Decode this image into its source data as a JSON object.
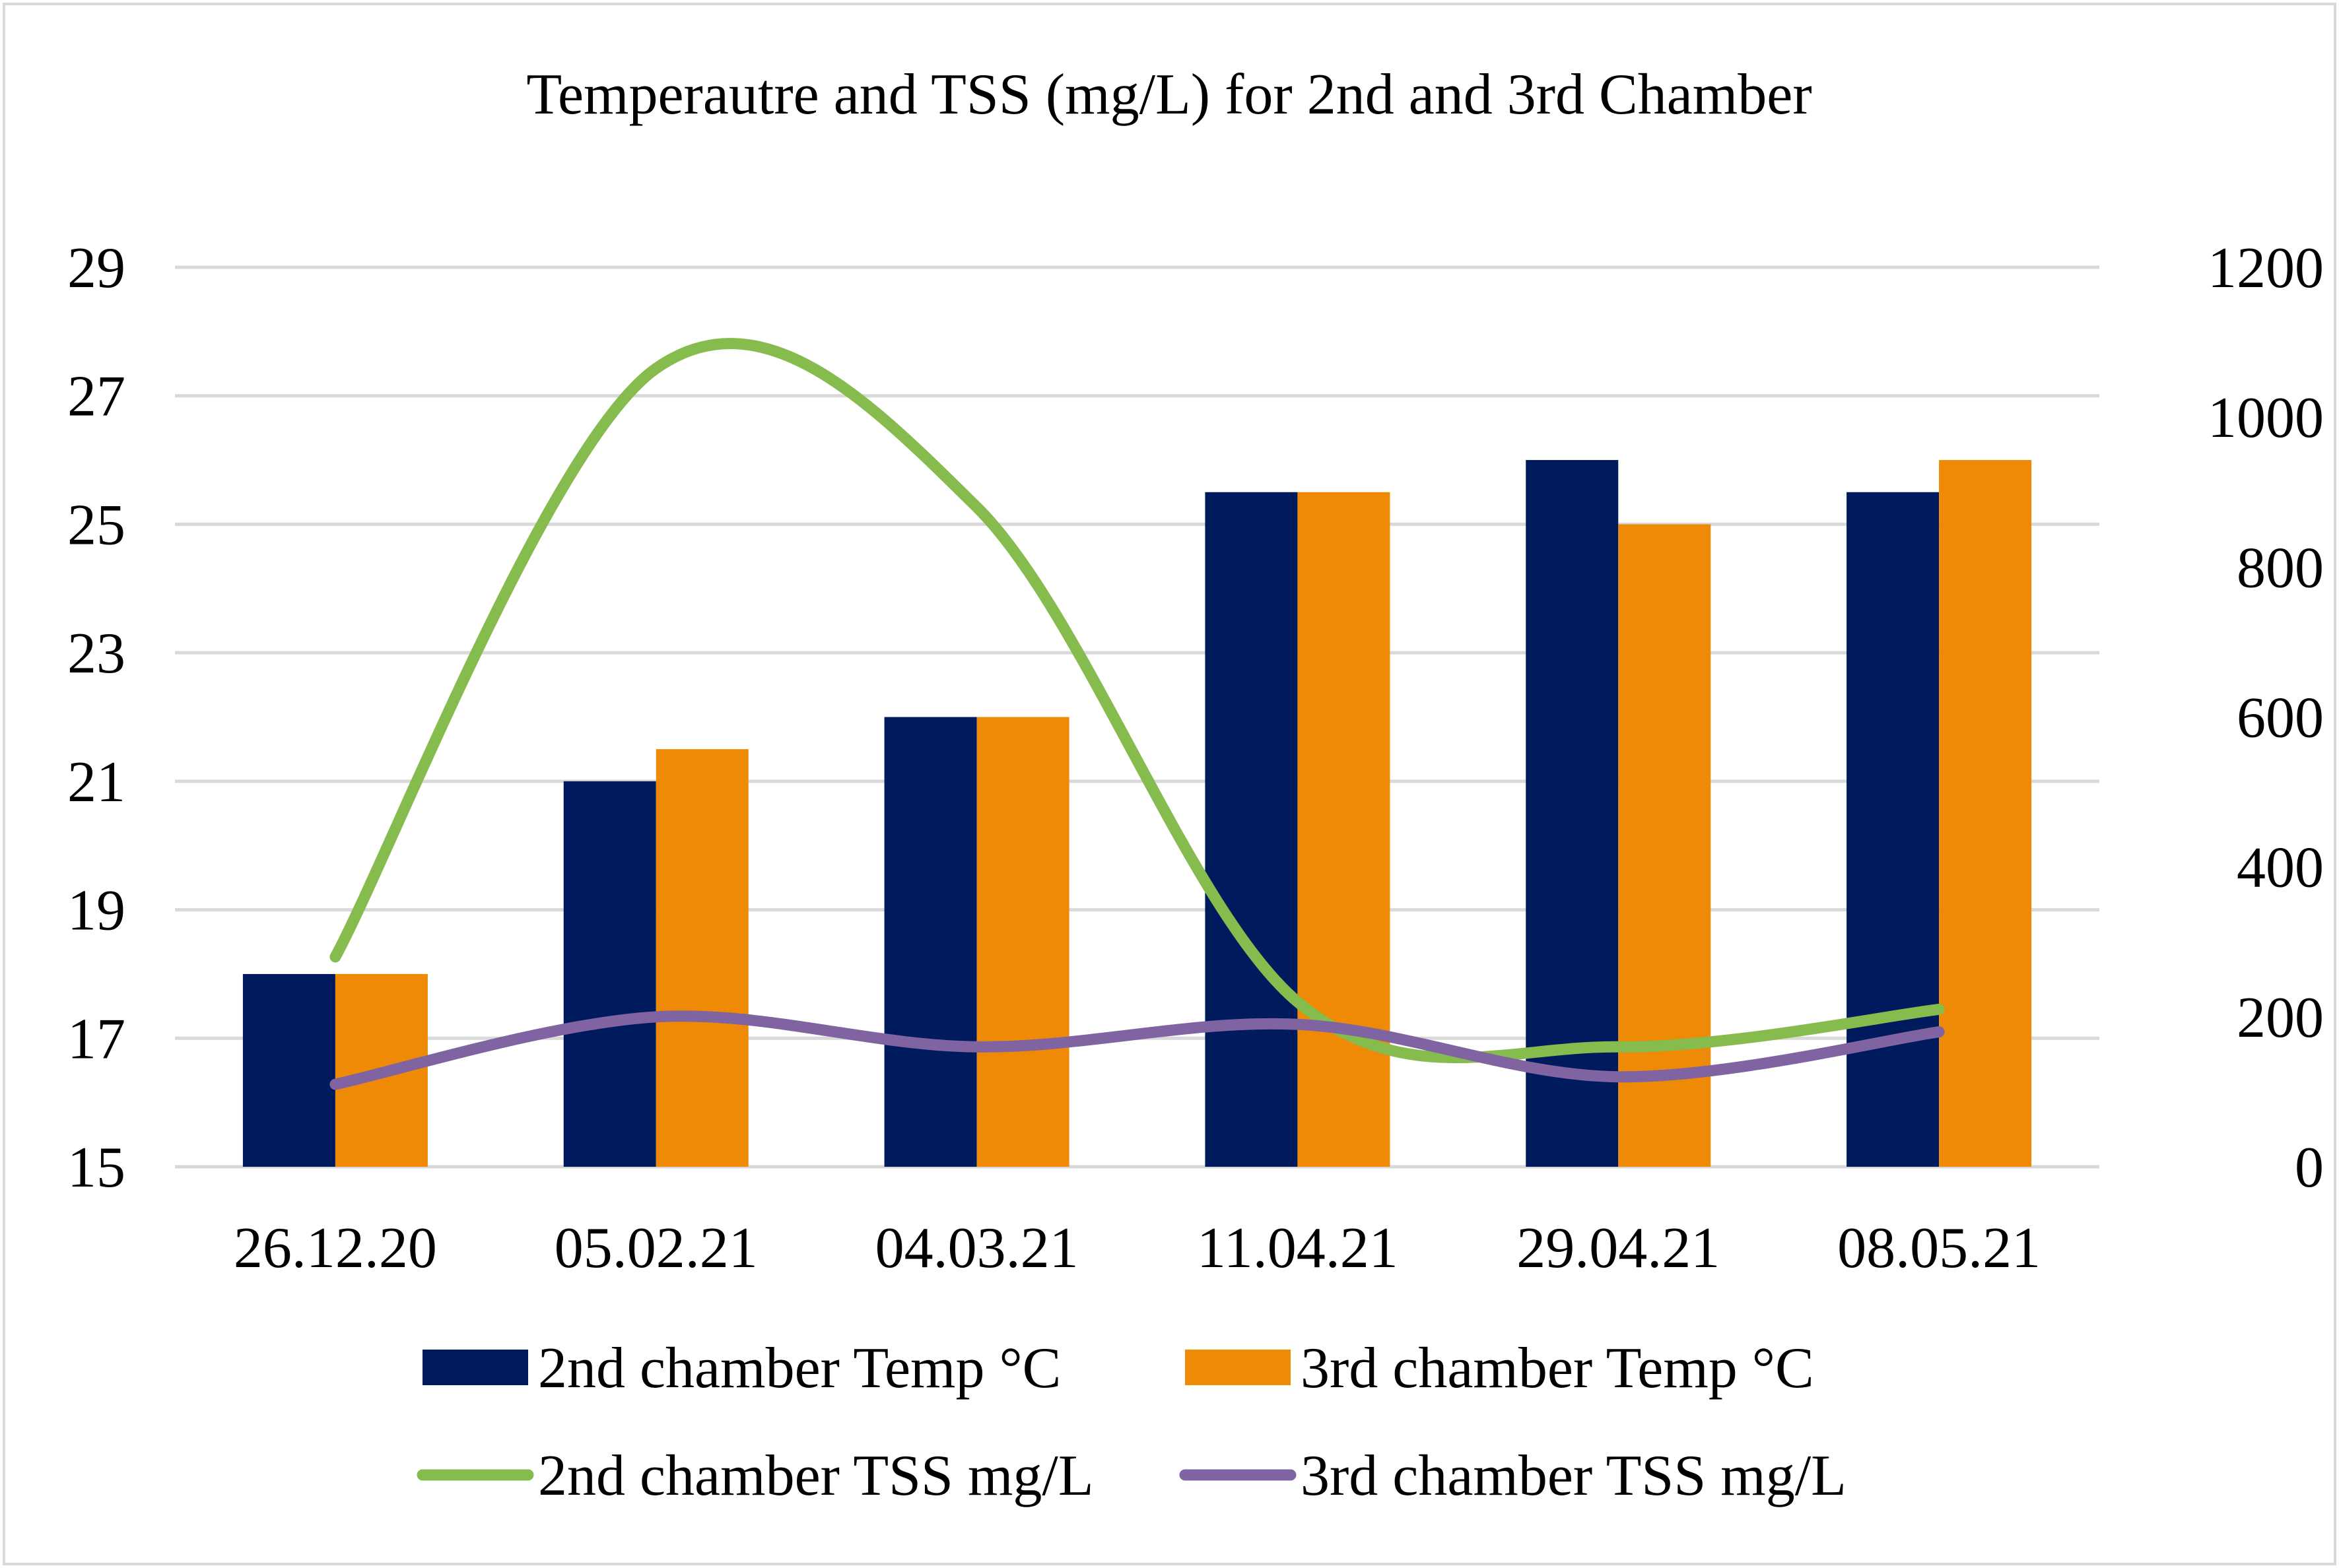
{
  "chart_data": {
    "type": "bar",
    "title": "Temperautre and TSS (mg/L) for 2nd and 3rd Chamber",
    "categories": [
      "26.12.20",
      "05.02.21",
      "04.03.21",
      "11.04.21",
      "29.04.21",
      "08.05.21"
    ],
    "y_left": {
      "min": 15,
      "max": 29,
      "ticks": [
        "15",
        "17",
        "19",
        "21",
        "23",
        "25",
        "27",
        "29"
      ]
    },
    "y_right": {
      "min": 0,
      "max": 1200,
      "ticks": [
        "0",
        "200",
        "400",
        "600",
        "800",
        "1000",
        "1200"
      ]
    },
    "grid": true,
    "legend_position": "bottom",
    "bar_series": [
      {
        "name": "2nd chamber Temp °C",
        "axis": "left",
        "color": "#001a5e",
        "values": [
          18,
          21,
          22,
          25.5,
          26,
          25.5
        ]
      },
      {
        "name": "3rd chamber Temp °C",
        "axis": "left",
        "color": "#ee8a05",
        "values": [
          18,
          21.5,
          22,
          25.5,
          25,
          26
        ]
      }
    ],
    "line_series": [
      {
        "name": "2nd chamber TSS mg/L",
        "axis": "right",
        "color": "#86bb4d",
        "values": [
          280,
          1065,
          880,
          220,
          160,
          210
        ]
      },
      {
        "name": "3rd chamber TSS mg/L",
        "axis": "right",
        "color": "#8064a2",
        "values": [
          110,
          200,
          160,
          190,
          120,
          180
        ]
      }
    ]
  }
}
